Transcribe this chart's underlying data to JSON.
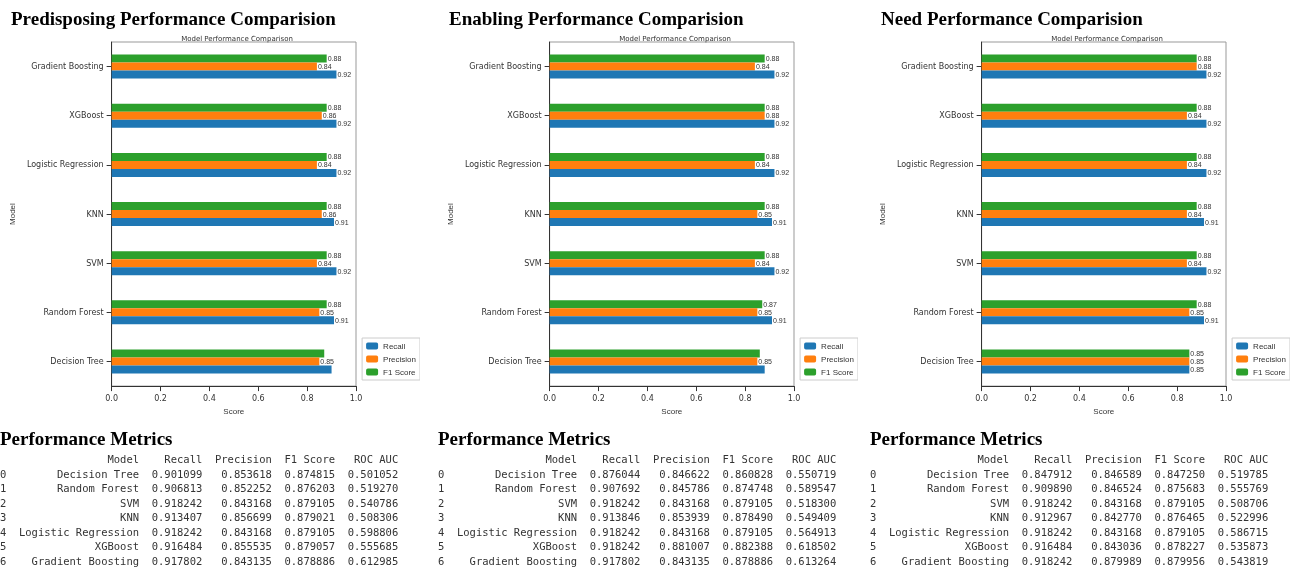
{
  "chart_data": [
    {
      "type": "bar",
      "orientation": "horizontal",
      "title": "Predisposing Performance Comparision",
      "subtitle": "Model Performance Comparison",
      "xlabel": "Score",
      "ylabel": "Model",
      "categories": [
        "Gradient Boosting",
        "XGBoost",
        "Logistic Regression",
        "KNN",
        "SVM",
        "Random Forest",
        "Decision Tree"
      ],
      "xlim": [
        0,
        1
      ],
      "xticks": [
        {
          "value": 0,
          "label": "0.0"
        },
        {
          "value": 0.2,
          "label": "0.2"
        },
        {
          "value": 0.4,
          "label": "0.4"
        },
        {
          "value": 0.6,
          "label": "0.6"
        },
        {
          "value": 0.8,
          "label": "0.8"
        },
        {
          "value": 1,
          "label": "1.0"
        }
      ],
      "grid": false,
      "legend": "bottom right",
      "series": [
        {
          "name": "Recall",
          "color": "#1f77b4",
          "values": [
            0.92,
            0.92,
            0.92,
            0.91,
            0.92,
            0.91,
            0.9
          ],
          "value_labels": [
            "0.92",
            "0.92",
            "0.92",
            "0.91",
            "0.92",
            "0.91",
            null
          ]
        },
        {
          "name": "Precision",
          "color": "#ff7f0e",
          "values": [
            0.84,
            0.86,
            0.84,
            0.86,
            0.84,
            0.85,
            0.85
          ],
          "value_labels": [
            "0.84",
            "0.86",
            "0.84",
            "0.86",
            "0.84",
            "0.85",
            "0.85"
          ]
        },
        {
          "name": "F1 Score",
          "color": "#2ca02c",
          "values": [
            0.88,
            0.88,
            0.88,
            0.88,
            0.88,
            0.88,
            0.87
          ],
          "value_labels": [
            "0.88",
            "0.88",
            "0.88",
            "0.88",
            "0.88",
            "0.88",
            null
          ]
        }
      ]
    },
    {
      "type": "bar",
      "orientation": "horizontal",
      "title": "Enabling Performance Comparision",
      "subtitle": "Model Performance Comparison",
      "xlabel": "Score",
      "ylabel": "Model",
      "categories": [
        "Gradient Boosting",
        "XGBoost",
        "Logistic Regression",
        "KNN",
        "SVM",
        "Random Forest",
        "Decision Tree"
      ],
      "xlim": [
        0,
        1
      ],
      "xticks": [
        {
          "value": 0,
          "label": "0.0"
        },
        {
          "value": 0.2,
          "label": "0.2"
        },
        {
          "value": 0.4,
          "label": "0.4"
        },
        {
          "value": 0.6,
          "label": "0.6"
        },
        {
          "value": 0.8,
          "label": "0.8"
        },
        {
          "value": 1,
          "label": "1.0"
        }
      ],
      "grid": false,
      "legend": "bottom right",
      "series": [
        {
          "name": "Recall",
          "color": "#1f77b4",
          "values": [
            0.92,
            0.92,
            0.92,
            0.91,
            0.92,
            0.91,
            0.88
          ],
          "value_labels": [
            "0.92",
            "0.92",
            "0.92",
            "0.91",
            "0.92",
            "0.91",
            null
          ]
        },
        {
          "name": "Precision",
          "color": "#ff7f0e",
          "values": [
            0.84,
            0.88,
            0.84,
            0.85,
            0.84,
            0.85,
            0.85
          ],
          "value_labels": [
            "0.84",
            "0.88",
            "0.84",
            "0.85",
            "0.84",
            "0.85",
            "0.85"
          ]
        },
        {
          "name": "F1 Score",
          "color": "#2ca02c",
          "values": [
            0.88,
            0.88,
            0.88,
            0.88,
            0.88,
            0.87,
            0.86
          ],
          "value_labels": [
            "0.88",
            "0.88",
            "0.88",
            "0.88",
            "0.88",
            "0.87",
            null
          ]
        }
      ]
    },
    {
      "type": "bar",
      "orientation": "horizontal",
      "title": "Need Performance Comparision",
      "subtitle": "Model Performance Comparison",
      "xlabel": "Score",
      "ylabel": "Model",
      "categories": [
        "Gradient Boosting",
        "XGBoost",
        "Logistic Regression",
        "KNN",
        "SVM",
        "Random Forest",
        "Decision Tree"
      ],
      "xlim": [
        0,
        1
      ],
      "xticks": [
        {
          "value": 0,
          "label": "0.0"
        },
        {
          "value": 0.2,
          "label": "0.2"
        },
        {
          "value": 0.4,
          "label": "0.4"
        },
        {
          "value": 0.6,
          "label": "0.6"
        },
        {
          "value": 0.8,
          "label": "0.8"
        },
        {
          "value": 1,
          "label": "1.0"
        }
      ],
      "grid": false,
      "legend": "bottom right",
      "data_labels": true,
      "series": [
        {
          "name": "Recall",
          "color": "#1f77b4",
          "values": [
            0.92,
            0.92,
            0.92,
            0.91,
            0.92,
            0.91,
            0.85
          ]
        },
        {
          "name": "Precision",
          "color": "#ff7f0e",
          "values": [
            0.88,
            0.84,
            0.84,
            0.84,
            0.84,
            0.85,
            0.85
          ]
        },
        {
          "name": "F1 Score",
          "color": "#2ca02c",
          "values": [
            0.88,
            0.88,
            0.88,
            0.88,
            0.88,
            0.88,
            0.85
          ]
        }
      ]
    },
    {
      "type": "other",
      "title": "Performance Metrics",
      "annotations": [
        "                 Model    Recall  Precision  F1 Score   ROC AUC",
        "0        Decision Tree  0.901099   0.853618  0.874815  0.501052",
        "1        Random Forest  0.906813   0.852252  0.876203  0.519270",
        "2                  SVM  0.918242   0.843168  0.879105  0.540786",
        "3                  KNN  0.913407   0.856699  0.879021  0.508306",
        "4  Logistic Regression  0.918242   0.843168  0.879105  0.598806",
        "5              XGBoost  0.916484   0.855535  0.879057  0.555685",
        "6    Gradient Boosting  0.917802   0.843135  0.878886  0.612985"
      ]
    },
    {
      "type": "other",
      "title": "Performance Metrics",
      "annotations": [
        "                 Model    Recall  Precision  F1 Score   ROC AUC",
        "0        Decision Tree  0.876044   0.846622  0.860828  0.550719",
        "1        Random Forest  0.907692   0.845786  0.874748  0.589547",
        "2                  SVM  0.918242   0.843168  0.879105  0.518300",
        "3                  KNN  0.913846   0.853939  0.878490  0.549409",
        "4  Logistic Regression  0.918242   0.843168  0.879105  0.564913",
        "5              XGBoost  0.918242   0.881007  0.882388  0.618502",
        "6    Gradient Boosting  0.917802   0.843135  0.878886  0.613264"
      ]
    },
    {
      "type": "other",
      "title": "Performance Metrics",
      "annotations": [
        "                 Model    Recall  Precision  F1 Score   ROC AUC",
        "0        Decision Tree  0.847912   0.846589  0.847250  0.519785",
        "1        Random Forest  0.909890   0.846524  0.875683  0.555769",
        "2                  SVM  0.918242   0.843168  0.879105  0.508706",
        "3                  KNN  0.912967   0.842770  0.876465  0.522996",
        "4  Logistic Regression  0.918242   0.843168  0.879105  0.586715",
        "5              XGBoost  0.916484   0.843036  0.878227  0.535873",
        "6    Gradient Boosting  0.918242   0.879989  0.879956  0.543819"
      ]
    }
  ]
}
